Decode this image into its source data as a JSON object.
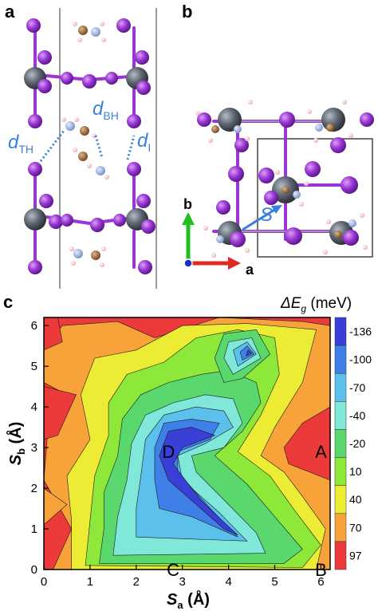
{
  "panels": {
    "a": "a",
    "b": "b",
    "c": "c"
  },
  "panel_a": {
    "d_TH": "d",
    "d_TH_sub": "TH",
    "d_BH": "d",
    "d_BH_sub": "BH",
    "d_I": "d",
    "d_I_sub": "I"
  },
  "panel_b": {
    "axis_b": "b",
    "axis_a": "a",
    "shift_label": "S"
  },
  "chart_data": {
    "type": "heatmap",
    "subtype": "filled-contour",
    "xlabel_main": "S",
    "xlabel_sub": "a",
    "xlabel_unit": " (Å)",
    "ylabel_main": "S",
    "ylabel_sub": "b",
    "ylabel_unit": " (Å)",
    "xlim": [
      0,
      6.2
    ],
    "ylim": [
      0,
      6.2
    ],
    "xticks": [
      "0",
      "1",
      "2",
      "3",
      "4",
      "5",
      "6"
    ],
    "yticks": [
      "0",
      "1",
      "2",
      "3",
      "4",
      "5",
      "6"
    ],
    "colorbar_title_main": "ΔE",
    "colorbar_title_sub": "g",
    "colorbar_title_unit": " (meV)",
    "colorbar_levels": [
      "-136",
      "-100",
      "-70",
      "-40",
      "-20",
      "10",
      "40",
      "70",
      "97"
    ],
    "colorbar_colors": [
      "#3a3fd8",
      "#3e7fe8",
      "#5cc0ec",
      "#7fe8d8",
      "#5ad86e",
      "#8ee83a",
      "#ecec34",
      "#f7a33a",
      "#ec3a3a"
    ],
    "annotations": [
      {
        "label": "D",
        "x": 2.7,
        "y": 2.9
      },
      {
        "label": "A",
        "x": 6.0,
        "y": 2.9
      },
      {
        "label": "C",
        "x": 2.8,
        "y": 0.0
      },
      {
        "label": "B",
        "x": 6.0,
        "y": 0.0
      }
    ]
  }
}
